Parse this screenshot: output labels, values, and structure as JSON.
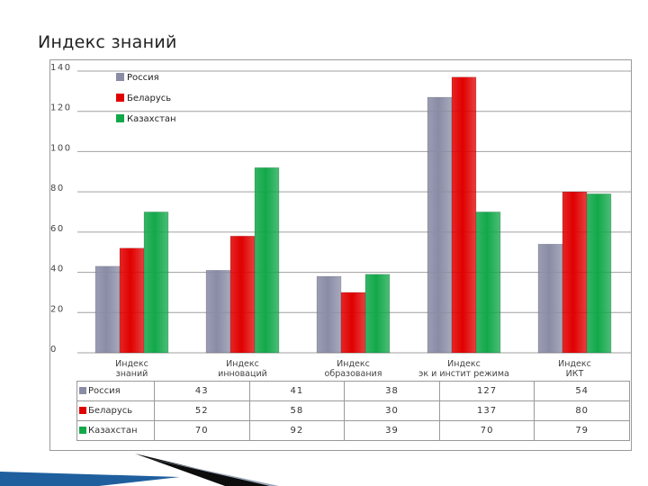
{
  "slide": {
    "title": "Индекс знаний"
  },
  "colors": {
    "Россия": "#8a8ca6",
    "Беларусь": "#e00000",
    "Казахстан": "#12a84a"
  },
  "chart_data": {
    "type": "bar",
    "title": "",
    "xlabel": "",
    "ylabel": "",
    "ylim": [
      0,
      140
    ],
    "yticks": [
      0,
      20,
      40,
      60,
      80,
      100,
      120,
      140
    ],
    "grid": true,
    "legend": "top-left",
    "categories": [
      "Индекс знаний",
      "Индекс инноваций",
      "Индекс образования",
      "Индекс эк и инстит режима",
      "Индекс ИКТ"
    ],
    "series": [
      {
        "name": "Россия",
        "values": [
          43,
          41,
          38,
          127,
          54
        ]
      },
      {
        "name": "Беларусь",
        "values": [
          52,
          58,
          30,
          137,
          80
        ]
      },
      {
        "name": "Казахстан",
        "values": [
          70,
          92,
          39,
          70,
          79
        ]
      }
    ]
  }
}
